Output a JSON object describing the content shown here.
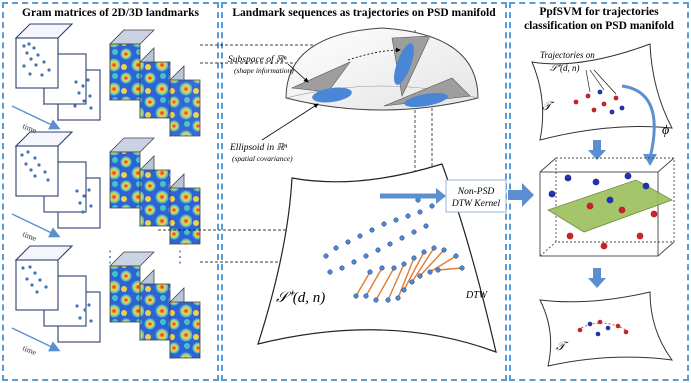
{
  "panels": {
    "left": {
      "title": "Gram matrices of 2D/3D landmarks"
    },
    "middle": {
      "title": "Landmark sequences as trajectories on PSD manifold"
    },
    "right": {
      "title_line1": "PpfSVM  for trajectories",
      "title_line2": "classification on PSD manifold"
    }
  },
  "labels": {
    "time": "time",
    "subspace_line1": "Subspace of ℝⁿ",
    "subspace_line2": "(shape information)",
    "ellipsoid_line1": "Ellipsoid in ℝⁿ",
    "ellipsoid_line2": "(spatial covariance)",
    "kernel_line1": "Non-PSD",
    "kernel_line2": "DTW Kernel",
    "dtw": "DTW",
    "manifold": "𝒮⁺(d, n)",
    "traj_line1": "Trajectories on",
    "traj_line2": "𝒮⁺(d, n)",
    "T_top": "𝒯",
    "T_bottom": "𝒯",
    "phi": "ϕ",
    "dots": "⋮"
  },
  "colors": {
    "panel_border": "#5b9bd5",
    "arrow_blue": "#5b8fd0",
    "landmark": "#3f74b5",
    "ellipse": "#4a86d6",
    "plane": "#9bbf5a",
    "dtw_line": "#e07d30",
    "red_point": "#c0252a",
    "blue_point": "#2233aa"
  }
}
